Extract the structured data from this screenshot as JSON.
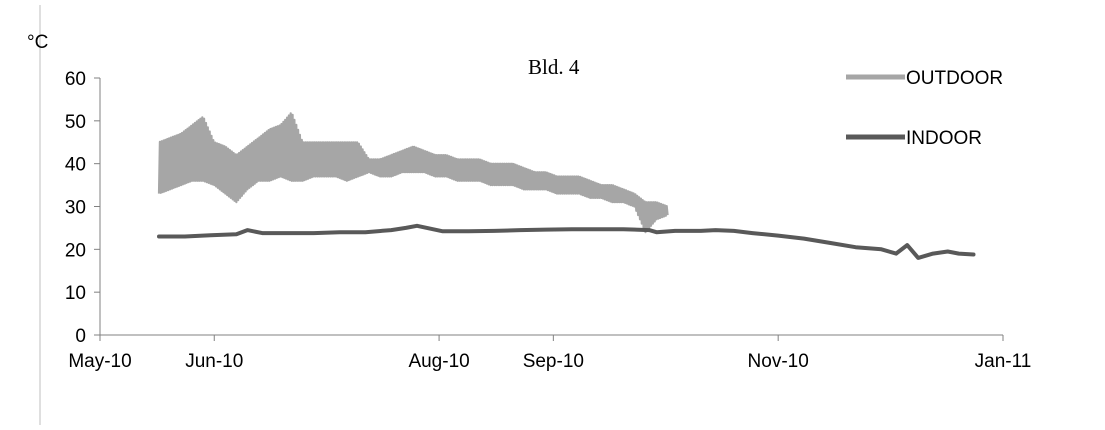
{
  "chart_data": {
    "type": "line",
    "title": "Bld. 4",
    "ylabel": "°C",
    "xlabel": "",
    "ylim": [
      0,
      60
    ],
    "yticks": [
      0,
      10,
      20,
      30,
      40,
      50,
      60
    ],
    "xlim": [
      "2010-05-01",
      "2011-01-01"
    ],
    "xticks": [
      {
        "date": "2010-05-01",
        "label": "May-10"
      },
      {
        "date": "2010-06-01",
        "label": "Jun-10"
      },
      {
        "date": "2010-08-01",
        "label": "Aug-10"
      },
      {
        "date": "2010-09-01",
        "label": "Sep-10"
      },
      {
        "date": "2010-11-01",
        "label": "Nov-10"
      },
      {
        "date": "2011-01-01",
        "label": "Jan-11"
      }
    ],
    "grid": false,
    "legend_position": "top-right",
    "series": [
      {
        "name": "OUTDOOR",
        "color": "#a6a6a6",
        "band": true,
        "x": [
          "2010-05-17",
          "2010-05-20",
          "2010-05-23",
          "2010-05-26",
          "2010-05-29",
          "2010-06-01",
          "2010-06-04",
          "2010-06-07",
          "2010-06-10",
          "2010-06-13",
          "2010-06-16",
          "2010-06-19",
          "2010-06-22",
          "2010-06-25",
          "2010-06-28",
          "2010-07-01",
          "2010-07-04",
          "2010-07-07",
          "2010-07-10",
          "2010-07-13",
          "2010-07-16",
          "2010-07-19",
          "2010-07-22",
          "2010-07-25",
          "2010-07-28",
          "2010-07-31",
          "2010-08-03",
          "2010-08-06",
          "2010-08-09",
          "2010-08-12",
          "2010-08-15",
          "2010-08-18",
          "2010-08-21",
          "2010-08-24",
          "2010-08-27",
          "2010-08-30",
          "2010-09-02",
          "2010-09-05",
          "2010-09-08",
          "2010-09-11",
          "2010-09-14",
          "2010-09-17",
          "2010-09-20",
          "2010-09-23",
          "2010-09-26",
          "2010-09-29",
          "2010-10-02"
        ],
        "min": [
          33,
          34,
          35,
          36,
          36,
          35,
          33,
          31,
          34,
          36,
          36,
          37,
          36,
          36,
          37,
          37,
          37,
          36,
          37,
          38,
          37,
          37,
          38,
          38,
          38,
          37,
          37,
          36,
          36,
          36,
          35,
          35,
          35,
          34,
          34,
          34,
          33,
          33,
          33,
          32,
          32,
          31,
          31,
          30,
          24,
          27,
          28
        ],
        "max": [
          45,
          46,
          47,
          49,
          51,
          45,
          44,
          42,
          44,
          46,
          48,
          49,
          52,
          45,
          45,
          45,
          45,
          45,
          45,
          41,
          41,
          42,
          43,
          44,
          43,
          42,
          42,
          41,
          41,
          41,
          40,
          40,
          40,
          39,
          38,
          38,
          37,
          37,
          37,
          36,
          35,
          35,
          34,
          33,
          31,
          31,
          30
        ]
      },
      {
        "name": "INDOOR",
        "color": "#595959",
        "band": false,
        "x": [
          "2010-05-17",
          "2010-05-24",
          "2010-05-31",
          "2010-06-07",
          "2010-06-10",
          "2010-06-14",
          "2010-06-21",
          "2010-06-28",
          "2010-07-05",
          "2010-07-12",
          "2010-07-19",
          "2010-07-23",
          "2010-07-26",
          "2010-08-02",
          "2010-08-09",
          "2010-08-16",
          "2010-08-23",
          "2010-08-30",
          "2010-09-06",
          "2010-09-13",
          "2010-09-20",
          "2010-09-27",
          "2010-09-29",
          "2010-10-04",
          "2010-10-11",
          "2010-10-15",
          "2010-10-20",
          "2010-10-25",
          "2010-11-01",
          "2010-11-08",
          "2010-11-15",
          "2010-11-22",
          "2010-11-29",
          "2010-12-03",
          "2010-12-06",
          "2010-12-09",
          "2010-12-13",
          "2010-12-17",
          "2010-12-20",
          "2010-12-24"
        ],
        "y": [
          23,
          23,
          23.3,
          23.5,
          24.5,
          23.8,
          23.8,
          23.8,
          24,
          24,
          24.5,
          25,
          25.5,
          24.2,
          24.2,
          24.3,
          24.5,
          24.6,
          24.7,
          24.7,
          24.7,
          24.5,
          24,
          24.3,
          24.3,
          24.5,
          24.3,
          23.8,
          23.2,
          22.5,
          21.5,
          20.5,
          20,
          19,
          21,
          18,
          19,
          19.5,
          19,
          18.8
        ]
      }
    ]
  }
}
